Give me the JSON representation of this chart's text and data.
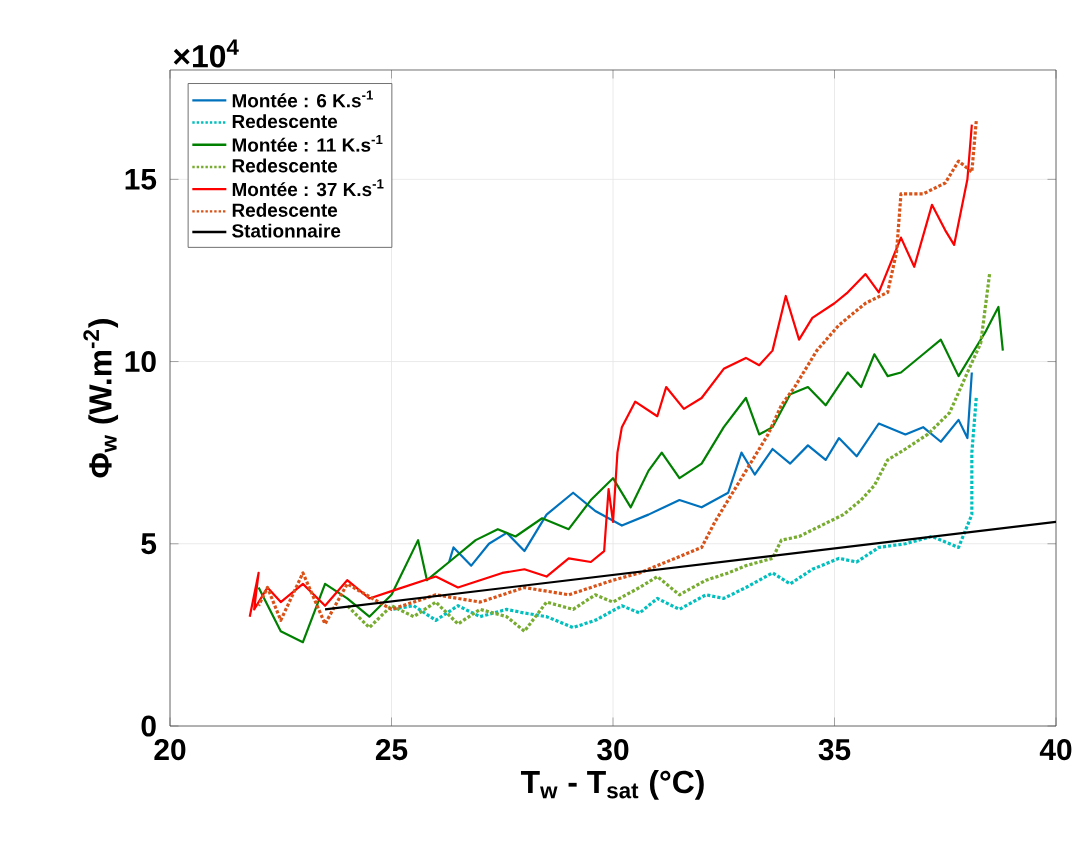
{
  "chart_data": {
    "type": "line",
    "xlabel": "T$_{w}$ - T$_{sat}$ (°C)",
    "ylabel": "Φ$_{w}$ (W.m$^{-2}$)",
    "annotations": [
      "×10$^{4}$"
    ],
    "xlim": [
      20,
      40
    ],
    "ylim": [
      0,
      18
    ],
    "xticks": [
      20,
      25,
      30,
      35,
      40
    ],
    "yticks": [
      0,
      5,
      10,
      15
    ],
    "grid": true,
    "legend": "top left",
    "series": [
      {
        "name": "Montée : 6 K.s$^{-1}$",
        "color": "#0072bd",
        "line_style": "solid",
        "x": [
          26.3,
          26.4,
          26.8,
          27.2,
          27.6,
          28.0,
          28.5,
          29.1,
          29.6,
          30.2,
          30.8,
          31.5,
          32.0,
          32.6,
          32.9,
          33.2,
          33.6,
          34.0,
          34.4,
          34.8,
          35.1,
          35.5,
          36.0,
          36.6,
          37.0,
          37.4,
          37.8,
          38.0,
          38.1
        ],
        "values": [
          4.5,
          4.9,
          4.4,
          5.0,
          5.3,
          4.8,
          5.8,
          6.4,
          5.9,
          5.5,
          5.8,
          6.2,
          6.0,
          6.4,
          7.5,
          6.9,
          7.6,
          7.2,
          7.7,
          7.3,
          7.9,
          7.4,
          8.3,
          8.0,
          8.2,
          7.8,
          8.4,
          7.9,
          9.7
        ]
      },
      {
        "name": "Redescente",
        "color": "#00bfbf",
        "line_style": "dotted",
        "x": [
          38.2,
          38.1,
          38.1,
          37.8,
          37.2,
          36.6,
          36.0,
          35.5,
          35.1,
          34.5,
          34.0,
          33.6,
          33.0,
          32.5,
          32.1,
          31.5,
          31.0,
          30.6,
          30.2,
          29.6,
          29.1,
          28.5,
          28.0,
          27.6,
          27.0,
          26.5,
          26.0,
          25.5,
          25.0
        ],
        "values": [
          9.0,
          7.5,
          5.8,
          4.9,
          5.2,
          5.0,
          4.9,
          4.5,
          4.6,
          4.3,
          3.9,
          4.2,
          3.8,
          3.5,
          3.6,
          3.2,
          3.5,
          3.1,
          3.3,
          2.9,
          2.7,
          3.0,
          3.1,
          3.2,
          3.0,
          3.3,
          2.9,
          3.3,
          3.2
        ]
      },
      {
        "name": "Montée : 11 K.s$^{-1}$",
        "color": "#008000",
        "line_style": "solid",
        "x": [
          22.0,
          22.5,
          23.0,
          23.5,
          24.0,
          24.5,
          25.0,
          25.6,
          25.8,
          26.3,
          26.9,
          27.4,
          27.8,
          28.4,
          29.0,
          29.5,
          30.0,
          30.4,
          30.8,
          31.1,
          31.5,
          32.0,
          32.5,
          33.0,
          33.3,
          33.6,
          34.0,
          34.4,
          34.8,
          35.3,
          35.6,
          35.9,
          36.2,
          36.5,
          37.0,
          37.4,
          37.8,
          38.1,
          38.4,
          38.7,
          38.8
        ],
        "values": [
          3.8,
          2.6,
          2.3,
          3.9,
          3.5,
          3.0,
          3.6,
          5.1,
          4.0,
          4.5,
          5.1,
          5.4,
          5.2,
          5.7,
          5.4,
          6.2,
          6.8,
          6.0,
          7.0,
          7.5,
          6.8,
          7.2,
          8.2,
          9.0,
          8.0,
          8.2,
          9.1,
          9.3,
          8.8,
          9.7,
          9.3,
          10.2,
          9.6,
          9.7,
          10.2,
          10.6,
          9.6,
          10.2,
          10.8,
          11.5,
          10.3
        ]
      },
      {
        "name": "Redescente",
        "color": "#77ac30",
        "line_style": "dotted",
        "x": [
          38.5,
          38.3,
          38.0,
          37.6,
          37.1,
          36.6,
          36.2,
          35.9,
          35.6,
          35.2,
          34.7,
          34.2,
          33.8,
          33.6,
          33.0,
          32.6,
          32.1,
          31.5,
          31.0,
          30.6,
          30.0,
          29.6,
          29.1,
          28.5,
          28.0,
          27.6,
          27.0,
          26.5,
          26.0,
          25.5,
          25.0,
          24.5,
          24.0
        ],
        "values": [
          12.4,
          10.5,
          9.7,
          8.6,
          8.0,
          7.6,
          7.3,
          6.6,
          6.2,
          5.8,
          5.5,
          5.2,
          5.1,
          4.6,
          4.4,
          4.2,
          4.0,
          3.6,
          4.1,
          3.8,
          3.4,
          3.6,
          3.2,
          3.4,
          2.6,
          3.0,
          3.2,
          2.8,
          3.4,
          3.0,
          3.3,
          2.7,
          3.3
        ]
      },
      {
        "name": "Montée : 37 K.s$^{-1}$",
        "color": "#ff0000",
        "line_style": "solid",
        "x": [
          21.8,
          22.0,
          21.9,
          22.2,
          22.5,
          23.0,
          23.5,
          24.0,
          24.5,
          25.0,
          25.5,
          26.0,
          26.5,
          27.0,
          27.5,
          28.0,
          28.5,
          29.0,
          29.5,
          29.8,
          29.9,
          30.0,
          30.1,
          30.2,
          30.5,
          31.0,
          31.2,
          31.6,
          32.0,
          32.5,
          33.0,
          33.3,
          33.6,
          33.9,
          34.2,
          34.5,
          35.0,
          35.3,
          35.7,
          36.0,
          36.5,
          36.8,
          37.2,
          37.5,
          37.7,
          38.0,
          38.1
        ],
        "values": [
          3.0,
          4.2,
          3.2,
          3.8,
          3.4,
          3.9,
          3.3,
          4.0,
          3.5,
          3.7,
          3.9,
          4.1,
          3.8,
          4.0,
          4.2,
          4.3,
          4.1,
          4.6,
          4.5,
          4.8,
          6.5,
          5.6,
          7.5,
          8.2,
          8.9,
          8.5,
          9.3,
          8.7,
          9.0,
          9.8,
          10.1,
          9.9,
          10.3,
          11.8,
          10.6,
          11.2,
          11.6,
          11.9,
          12.4,
          11.9,
          13.4,
          12.6,
          14.3,
          13.6,
          13.2,
          15.0,
          16.5
        ]
      },
      {
        "name": "Redescente",
        "color": "#d95319",
        "line_style": "dotted",
        "x": [
          38.2,
          38.1,
          37.8,
          37.5,
          37.0,
          36.5,
          36.4,
          36.2,
          35.7,
          35.1,
          34.6,
          34.1,
          33.8,
          33.5,
          33.1,
          32.7,
          32.3,
          32.0,
          31.4,
          30.6,
          30.0,
          29.0,
          28.0,
          27.0,
          26.0,
          25.0,
          24.0,
          23.5,
          23.0,
          22.5,
          22.2,
          22.0
        ],
        "values": [
          16.6,
          15.2,
          15.5,
          14.9,
          14.6,
          14.6,
          13.0,
          11.9,
          11.6,
          11.0,
          10.3,
          9.3,
          8.8,
          8.0,
          7.2,
          6.4,
          5.6,
          4.9,
          4.6,
          4.2,
          4.0,
          3.6,
          3.8,
          3.4,
          3.6,
          3.2,
          3.9,
          2.8,
          4.2,
          2.9,
          3.8,
          3.3
        ]
      },
      {
        "name": "Stationnaire",
        "color": "#000000",
        "line_style": "solid",
        "x": [
          23.5,
          40
        ],
        "values": [
          3.2,
          5.6
        ]
      }
    ]
  }
}
